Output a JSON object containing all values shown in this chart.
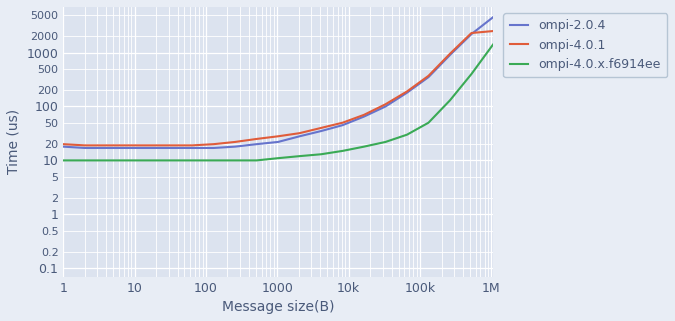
{
  "title": "",
  "xlabel": "Message size(B)",
  "ylabel": "Time (us)",
  "bg_color": "#dce3ef",
  "fig_bg_color": "#e8edf5",
  "series": [
    {
      "label": "ompi-2.0.4",
      "color": "#6674cc",
      "x": [
        1,
        2,
        4,
        8,
        16,
        32,
        64,
        128,
        256,
        512,
        1024,
        2048,
        4096,
        8192,
        16384,
        32768,
        65536,
        131072,
        262144,
        524288,
        1048576
      ],
      "y": [
        18,
        17,
        17,
        17,
        17,
        17,
        17,
        17,
        18,
        20,
        22,
        28,
        35,
        45,
        65,
        100,
        180,
        350,
        900,
        2200,
        4500
      ]
    },
    {
      "label": "ompi-4.0.1",
      "color": "#e05c3a",
      "x": [
        1,
        2,
        4,
        8,
        16,
        32,
        64,
        128,
        256,
        512,
        1024,
        2048,
        4096,
        8192,
        16384,
        32768,
        65536,
        131072,
        262144,
        524288,
        1048576
      ],
      "y": [
        20,
        19,
        19,
        19,
        19,
        19,
        19,
        20,
        22,
        25,
        28,
        32,
        40,
        50,
        70,
        110,
        190,
        370,
        950,
        2300,
        2500
      ]
    },
    {
      "label": "ompi-4.0.x.f6914ee",
      "color": "#3aaa55",
      "x": [
        1,
        2,
        4,
        8,
        16,
        32,
        64,
        128,
        256,
        512,
        1024,
        2048,
        4096,
        8192,
        16384,
        32768,
        65536,
        131072,
        262144,
        524288,
        1048576
      ],
      "y": [
        10,
        10,
        10,
        10,
        10,
        10,
        10,
        10,
        10,
        10,
        11,
        12,
        13,
        15,
        18,
        22,
        30,
        50,
        130,
        400,
        1400
      ]
    }
  ],
  "xlim": [
    1,
    1048576
  ],
  "ylim": [
    0.07,
    7000
  ],
  "xticks": [
    1,
    10,
    100,
    1000,
    10000,
    100000,
    1000000
  ],
  "xticklabels": [
    "1",
    "10",
    "100",
    "1000",
    "10k",
    "100k",
    "1M"
  ],
  "yticks_major": [
    0.1,
    1,
    10,
    100,
    1000
  ],
  "line_width": 1.5
}
